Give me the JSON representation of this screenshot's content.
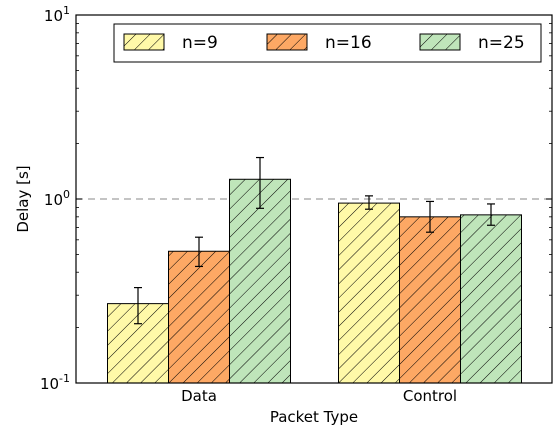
{
  "chart_data": {
    "type": "bar",
    "xlabel": "Packet Type",
    "ylabel": "Delay [s]",
    "yscale": "log",
    "ylim": [
      0.1,
      10
    ],
    "yticks": [
      {
        "value": 0.1,
        "base": "10",
        "exp": "-1"
      },
      {
        "value": 1,
        "base": "10",
        "exp": "0"
      },
      {
        "value": 10,
        "base": "10",
        "exp": "1"
      }
    ],
    "categories": [
      "Data",
      "Control"
    ],
    "reference_line": 1.0,
    "legend_position": "top-right",
    "series": [
      {
        "name": "n=9",
        "color": "#fff9a8",
        "values": [
          0.27,
          0.95
        ],
        "err_low": [
          0.21,
          0.88
        ],
        "err_high": [
          0.33,
          1.04
        ]
      },
      {
        "name": "n=16",
        "color": "#fda864",
        "values": [
          0.52,
          0.8
        ],
        "err_low": [
          0.43,
          0.66
        ],
        "err_high": [
          0.62,
          0.97
        ]
      },
      {
        "name": "n=25",
        "color": "#bfe5ba",
        "values": [
          1.28,
          0.82
        ],
        "err_low": [
          0.89,
          0.72
        ],
        "err_high": [
          1.68,
          0.94
        ]
      }
    ]
  }
}
